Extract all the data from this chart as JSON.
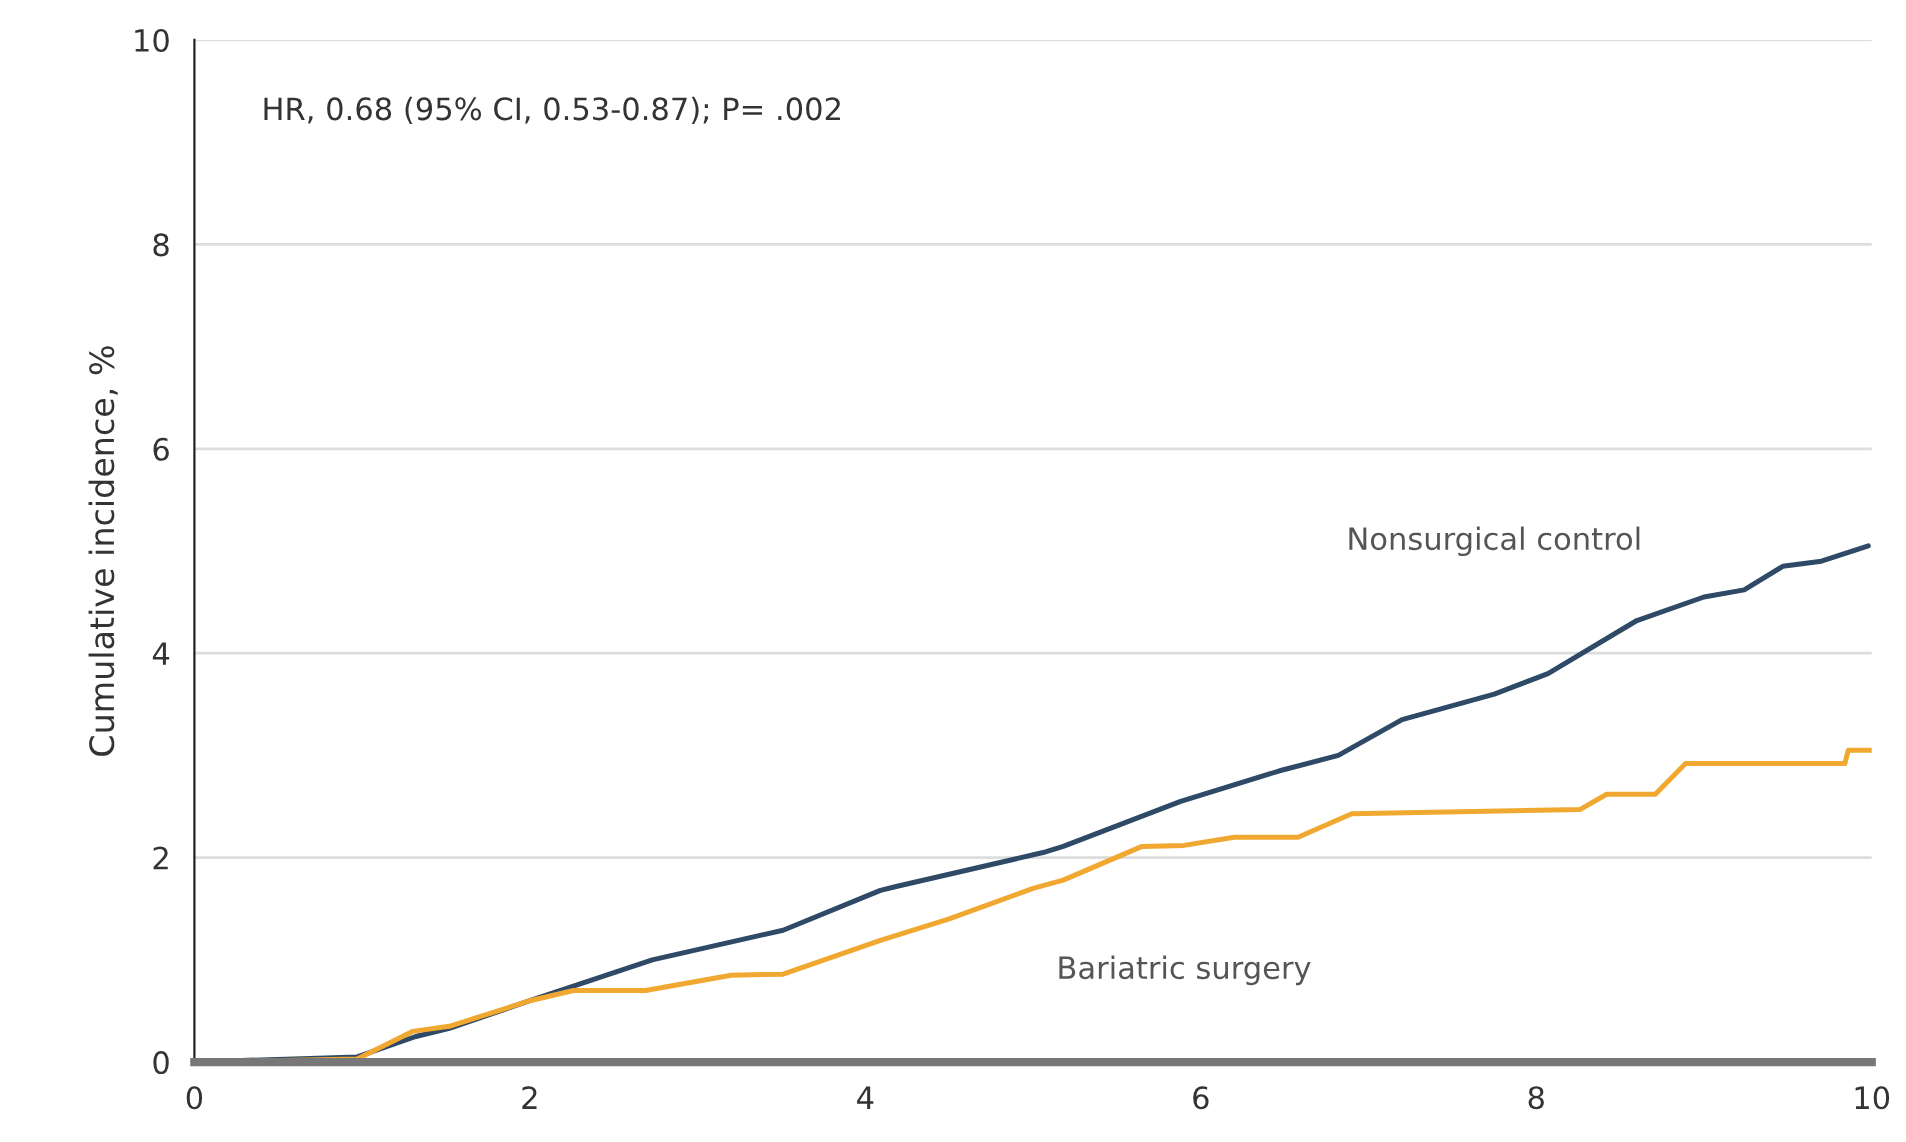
{
  "chart_data": {
    "type": "line",
    "ylabel": "Cumulative incidence, %",
    "annotations": [
      "HR, 0.68 (95% CI, 0.53-0.87); P= .002"
    ],
    "xlim": [
      0,
      10
    ],
    "xticks": [
      0,
      2,
      4,
      6,
      8,
      10
    ],
    "ylim": [
      0,
      10
    ],
    "yticks": [
      0,
      2,
      4,
      6,
      8,
      10
    ],
    "grid": "y",
    "legend": false,
    "line_style": "solid",
    "marker": "none",
    "series": [
      {
        "name": "Nonsurgical control",
        "color": "#2e4a66",
        "x": [
          0,
          0.97,
          1.32,
          1.52,
          2.0,
          2.73,
          3.51,
          4.09,
          4.19,
          5.06,
          5.18,
          5.88,
          6.47,
          6.82,
          7.2,
          7.75,
          8.07,
          8.6,
          9.0,
          9.24,
          9.47,
          9.7,
          9.98
        ],
        "values": [
          0,
          0.05,
          0.25,
          0.33,
          0.6,
          1.0,
          1.29,
          1.68,
          1.72,
          2.05,
          2.11,
          2.55,
          2.85,
          3.0,
          3.35,
          3.6,
          3.8,
          4.32,
          4.55,
          4.62,
          4.85,
          4.9,
          5.05
        ]
      },
      {
        "name": "Bariatric surgery",
        "color": "#f0a830",
        "x": [
          0,
          0.97,
          1.3,
          1.52,
          2.0,
          2.26,
          2.69,
          3.2,
          3.51,
          4.09,
          4.5,
          5.0,
          5.18,
          5.65,
          5.9,
          6.2,
          6.58,
          6.9,
          8.26,
          8.42,
          8.71,
          8.89,
          9.84,
          9.86,
          10.0
        ],
        "values": [
          0,
          0.03,
          0.3,
          0.35,
          0.6,
          0.7,
          0.7,
          0.85,
          0.86,
          1.19,
          1.4,
          1.7,
          1.78,
          2.11,
          2.12,
          2.2,
          2.2,
          2.43,
          2.47,
          2.62,
          2.62,
          2.92,
          2.92,
          3.05,
          3.05
        ]
      }
    ]
  }
}
